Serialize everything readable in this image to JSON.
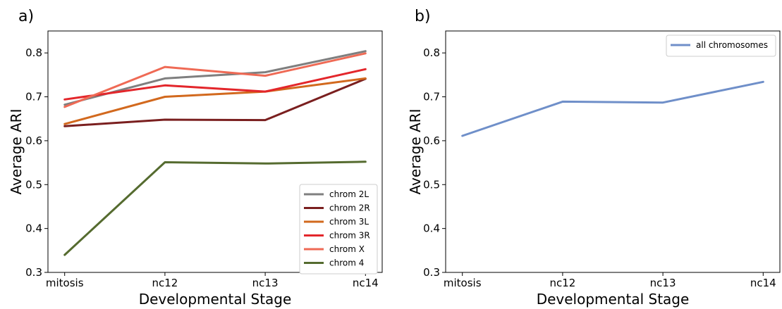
{
  "chart_data": [
    {
      "panel_label": "a)",
      "type": "line",
      "categories": [
        "mitosis",
        "nc12",
        "nc13",
        "nc14"
      ],
      "xlabel": "Developmental Stage",
      "ylabel": "Average ARI",
      "ylim": [
        0.3,
        0.85
      ],
      "yticks": [
        "0.3",
        "0.4",
        "0.5",
        "0.6",
        "0.7",
        "0.8"
      ],
      "grid": false,
      "legend_position": "bottom-right",
      "series": [
        {
          "name": "chrom 2L",
          "color": "#7f7f7f",
          "values": [
            0.682,
            0.742,
            0.756,
            0.804
          ]
        },
        {
          "name": "chrom 2R",
          "color": "#7a1f1f",
          "values": [
            0.633,
            0.648,
            0.647,
            0.741
          ]
        },
        {
          "name": "chrom 3L",
          "color": "#d2691e",
          "values": [
            0.638,
            0.7,
            0.712,
            0.742
          ]
        },
        {
          "name": "chrom 3R",
          "color": "#e3262b",
          "values": [
            0.694,
            0.726,
            0.712,
            0.763
          ]
        },
        {
          "name": "chrom X",
          "color": "#ef6a55",
          "values": [
            0.677,
            0.768,
            0.748,
            0.799
          ]
        },
        {
          "name": "chrom 4",
          "color": "#556b2f",
          "values": [
            0.34,
            0.551,
            0.548,
            0.552
          ]
        }
      ]
    },
    {
      "panel_label": "b)",
      "type": "line",
      "categories": [
        "mitosis",
        "nc12",
        "nc13",
        "nc14"
      ],
      "xlabel": "Developmental Stage",
      "ylabel": "Average ARI",
      "ylim": [
        0.3,
        0.85
      ],
      "yticks": [
        "0.3",
        "0.4",
        "0.5",
        "0.6",
        "0.7",
        "0.8"
      ],
      "grid": false,
      "legend_position": "top-right",
      "series": [
        {
          "name": "all chromosomes",
          "color": "#6f8fc9",
          "values": [
            0.611,
            0.689,
            0.687,
            0.734
          ]
        }
      ]
    }
  ]
}
